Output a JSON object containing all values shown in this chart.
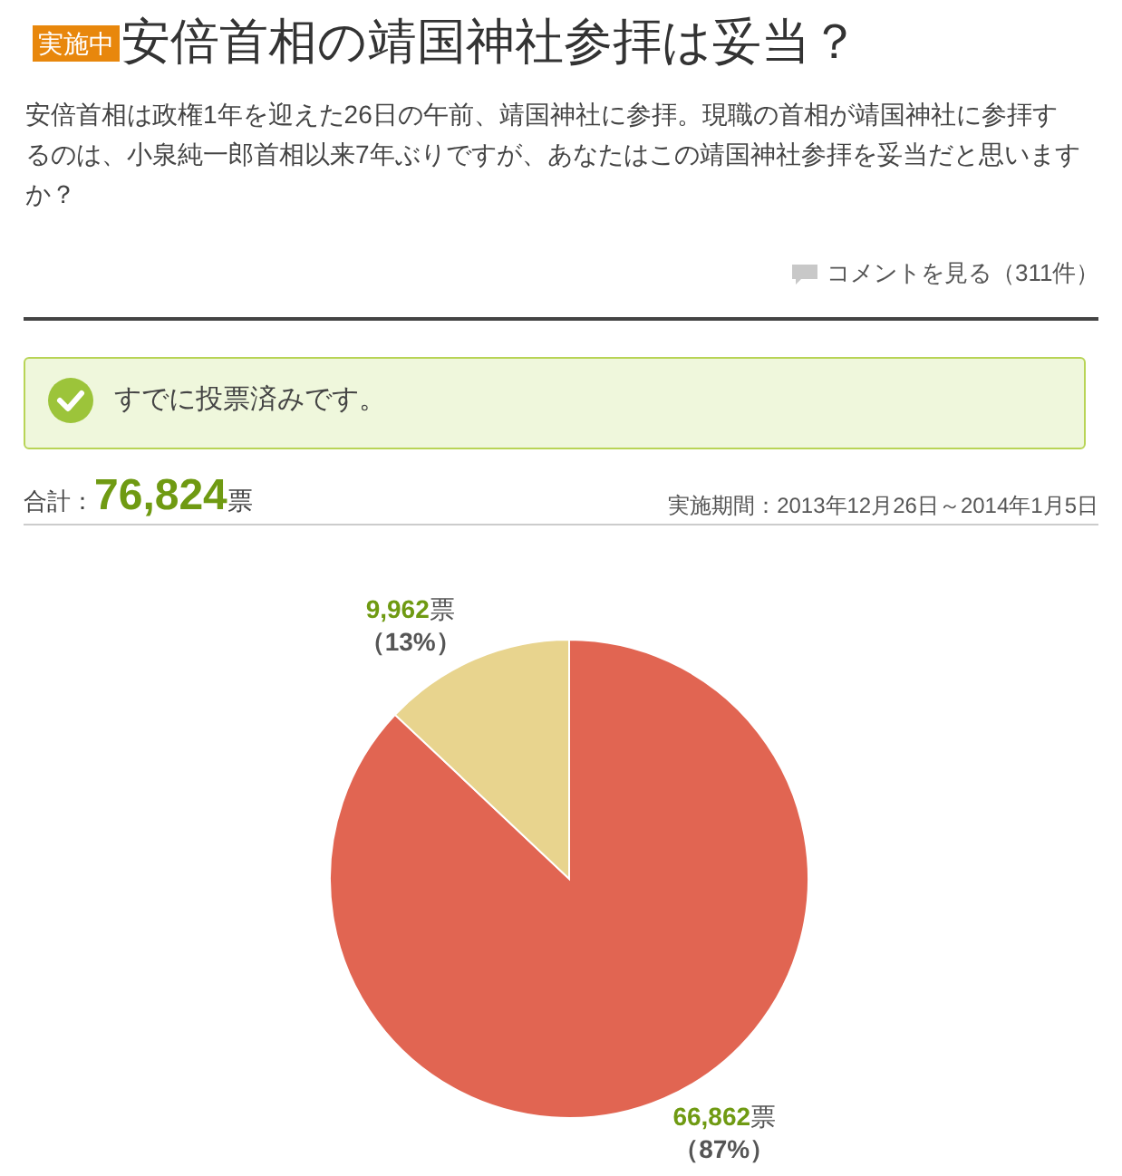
{
  "chart_data": {
    "type": "pie",
    "title": "安倍首相の靖国神社参拝は妥当？",
    "subtitle": "安倍首相は政権1年を迎えた26日の午前、靖国神社に参拝。現職の首相が靖国神社に参拝するのは、小泉純一郎首相以来7年ぶりですが、あなたはこの靖国神社参拝を妥当だと思いますか？",
    "categories": [
      null,
      null
    ],
    "values": [
      66862,
      9962
    ],
    "colors": [
      "#e16552",
      "#e8d48e"
    ],
    "value_labels": [
      "66,862票（87%）",
      "9,962票（13%）"
    ],
    "annotations": [
      "実施中",
      "コメントを見る（311件）",
      "すでに投票済みです。",
      "合計：76,824票",
      "実施期間：2013年12月26日～2014年1月5日"
    ]
  }
}
